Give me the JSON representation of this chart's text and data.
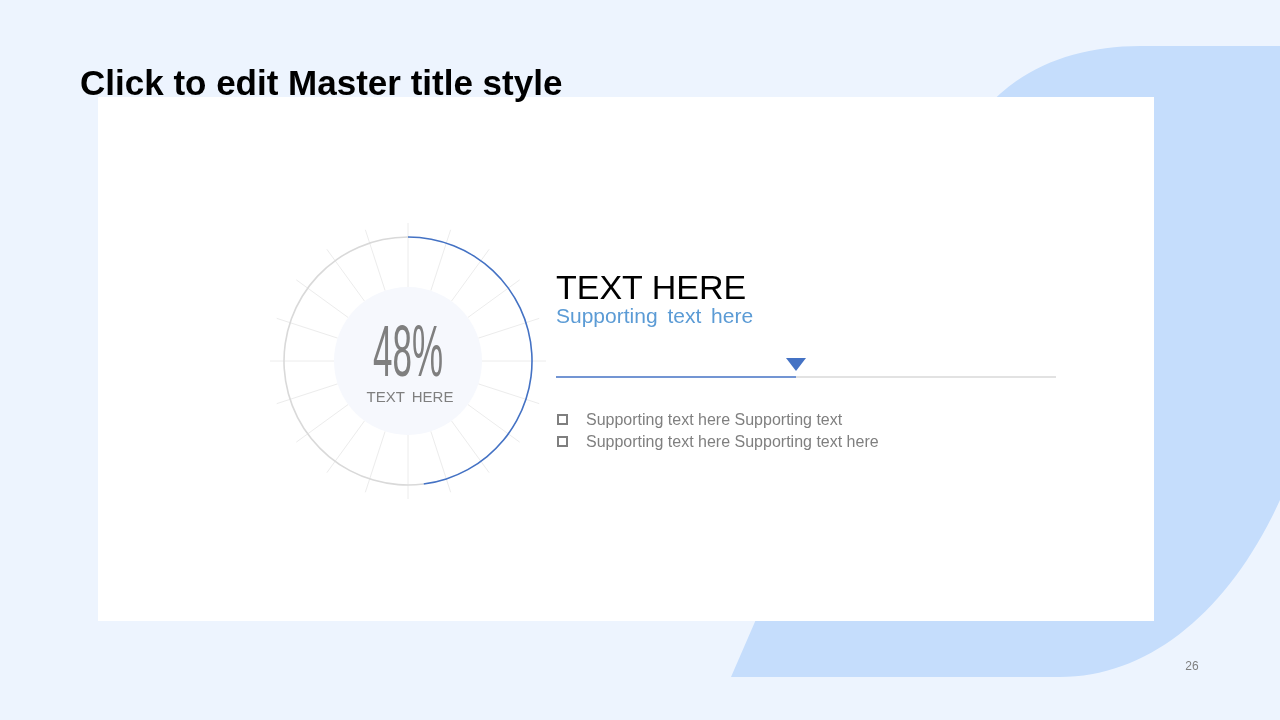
{
  "chart_data": {
    "type": "donut",
    "title": "Click to edit Master title style",
    "categories": [
      null,
      null
    ],
    "values": [
      48,
      52
    ],
    "colors": [
      "#4472c4",
      "#d9d9d9"
    ],
    "annotations": [
      "48%",
      "TEXT HERE",
      "TEXT HERE",
      "Supporting text here",
      "Supporting text here Supporting text",
      "Supporting text here Supporting text here",
      "26"
    ]
  }
}
